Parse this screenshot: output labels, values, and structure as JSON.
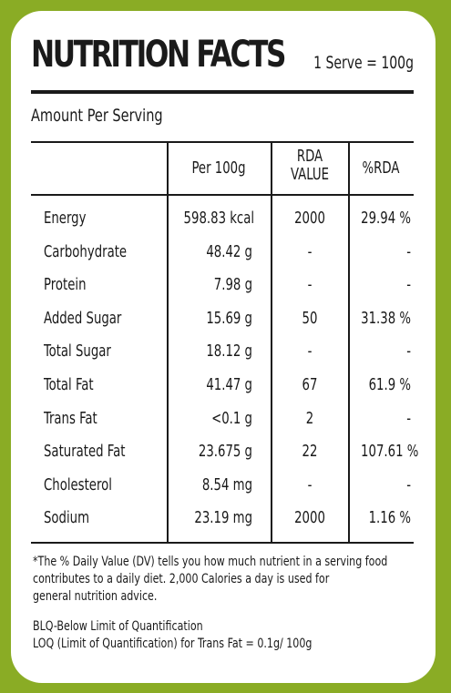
{
  "title": "NUTRITION FACTS",
  "serve": "1 Serve = 100g",
  "amount_per_serving": "Amount Per Serving",
  "columns": {
    "per100g": "Per 100g",
    "rda_line1": "RDA",
    "rda_line2": "VALUE",
    "pct_rda": "%RDA"
  },
  "rows": [
    {
      "name": "Energy",
      "per100g": "598.83 kcal",
      "rda": "2000",
      "pct": "29.94 %"
    },
    {
      "name": "Carbohydrate",
      "per100g": "48.42 g",
      "rda": "-",
      "pct": "-"
    },
    {
      "name": "Protein",
      "per100g": "7.98 g",
      "rda": "-",
      "pct": "-"
    },
    {
      "name": "Added Sugar",
      "per100g": "15.69 g",
      "rda": "50",
      "pct": "31.38 %"
    },
    {
      "name": "Total Sugar",
      "per100g": "18.12 g",
      "rda": "-",
      "pct": "-"
    },
    {
      "name": "Total Fat",
      "per100g": "41.47 g",
      "rda": "67",
      "pct": "61.9 %"
    },
    {
      "name": "Trans Fat",
      "per100g": "<0.1 g",
      "rda": "2",
      "pct": "-"
    },
    {
      "name": "Saturated Fat",
      "per100g": "23.675 g",
      "rda": "22",
      "pct": "107.61 %"
    },
    {
      "name": "Cholesterol",
      "per100g": "8.54 mg",
      "rda": "-",
      "pct": "-"
    },
    {
      "name": "Sodium",
      "per100g": "23.19 mg",
      "rda": "2000",
      "pct": "1.16 %"
    }
  ],
  "footnotes": {
    "line1": "*The % Daily Value (DV) tells you how much nutrient in a serving food",
    "line2": "contributes to a daily diet. 2,000 Calories a day is used for",
    "line3": "general nutrition advice.",
    "blq": "BLQ-Below Limit of Quantification",
    "loq": "LOQ (Limit of Quantification) for Trans Fat = 0.1g/ 100g"
  },
  "colors": {
    "background": "#8aac25",
    "card": "#ffffff",
    "text": "#1a1a1a"
  }
}
